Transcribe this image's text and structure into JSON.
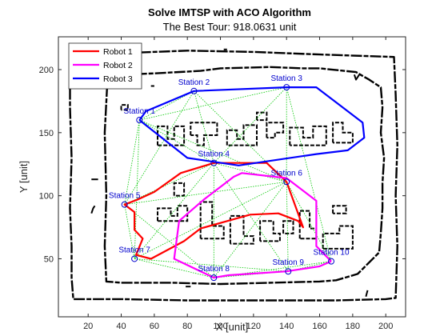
{
  "chart_data": {
    "type": "line",
    "title": "Solve IMTSP with ACO Algorithm",
    "subtitle": "The Best Tour: 918.0631 unit",
    "xlabel": "X [unit]",
    "ylabel": "Y [unit]",
    "xlim": [
      2,
      212
    ],
    "ylim": [
      4,
      226
    ],
    "xticks": [
      20,
      40,
      60,
      80,
      100,
      120,
      140,
      160,
      180,
      200
    ],
    "yticks": [
      50,
      100,
      150,
      200
    ],
    "grid": false,
    "legend_position": "top-left",
    "colors": {
      "map_walls": "#000000",
      "candidate_paths": "#00c800",
      "stations": "#0000cd",
      "axes": "#262626"
    },
    "stations": [
      {
        "label": "Station 1",
        "x": 51,
        "y": 160
      },
      {
        "label": "Station 2",
        "x": 84,
        "y": 183
      },
      {
        "label": "Station 3",
        "x": 140,
        "y": 186
      },
      {
        "label": "Station 4",
        "x": 96,
        "y": 126
      },
      {
        "label": "Station 5",
        "x": 42,
        "y": 93
      },
      {
        "label": "Station 6",
        "x": 140,
        "y": 111
      },
      {
        "label": "Station 7",
        "x": 48,
        "y": 50
      },
      {
        "label": "Station 8",
        "x": 96,
        "y": 35
      },
      {
        "label": "Station 9",
        "x": 141,
        "y": 40
      },
      {
        "label": "Station 10",
        "x": 167,
        "y": 48
      }
    ],
    "series": [
      {
        "name": "Robot 1",
        "color": "#ff0000",
        "x": [
          140,
          128,
          96,
          76,
          60,
          50,
          42,
          48,
          48,
          53,
          49,
          58,
          78,
          88,
          118,
          135,
          147,
          150,
          140
        ],
        "y": [
          111,
          126,
          126,
          118,
          103,
          97,
          93,
          87,
          73,
          66,
          53,
          50,
          64,
          74,
          85,
          86,
          80,
          75,
          111
        ]
      },
      {
        "name": "Robot 2",
        "color": "#ff00ff",
        "x": [
          167,
          160,
          140,
          105,
          96,
          72,
          75,
          90,
          108,
          113,
          140,
          158,
          158,
          167
        ],
        "y": [
          48,
          44,
          40,
          37,
          35,
          50,
          80,
          97,
          115,
          118,
          114,
          96,
          60,
          48
        ]
      },
      {
        "name": "Robot 3",
        "color": "#0000ff",
        "x": [
          51,
          55,
          84,
          140,
          158,
          186,
          187,
          177,
          158,
          111,
          80,
          51
        ],
        "y": [
          160,
          167,
          183,
          186,
          186,
          158,
          146,
          136,
          133,
          124,
          130,
          160
        ]
      }
    ],
    "candidate_paths": [
      [
        [
          51,
          160
        ],
        [
          84,
          183
        ]
      ],
      [
        [
          51,
          160
        ],
        [
          140,
          186
        ]
      ],
      [
        [
          51,
          160
        ],
        [
          96,
          126
        ]
      ],
      [
        [
          51,
          160
        ],
        [
          42,
          93
        ]
      ],
      [
        [
          51,
          160
        ],
        [
          140,
          111
        ]
      ],
      [
        [
          51,
          160
        ],
        [
          48,
          50
        ]
      ],
      [
        [
          84,
          183
        ],
        [
          140,
          186
        ]
      ],
      [
        [
          84,
          183
        ],
        [
          96,
          126
        ]
      ],
      [
        [
          84,
          183
        ],
        [
          140,
          111
        ]
      ],
      [
        [
          84,
          183
        ],
        [
          42,
          93
        ]
      ],
      [
        [
          140,
          186
        ],
        [
          96,
          126
        ]
      ],
      [
        [
          140,
          186
        ],
        [
          140,
          111
        ]
      ],
      [
        [
          140,
          186
        ],
        [
          167,
          48
        ]
      ],
      [
        [
          96,
          126
        ],
        [
          42,
          93
        ]
      ],
      [
        [
          96,
          126
        ],
        [
          140,
          111
        ]
      ],
      [
        [
          96,
          126
        ],
        [
          48,
          50
        ]
      ],
      [
        [
          96,
          126
        ],
        [
          96,
          35
        ]
      ],
      [
        [
          96,
          126
        ],
        [
          141,
          40
        ]
      ],
      [
        [
          42,
          93
        ],
        [
          48,
          50
        ]
      ],
      [
        [
          42,
          93
        ],
        [
          96,
          35
        ]
      ],
      [
        [
          42,
          93
        ],
        [
          140,
          111
        ]
      ],
      [
        [
          140,
          111
        ],
        [
          141,
          40
        ]
      ],
      [
        [
          140,
          111
        ],
        [
          167,
          48
        ]
      ],
      [
        [
          140,
          111
        ],
        [
          96,
          35
        ]
      ],
      [
        [
          48,
          50
        ],
        [
          96,
          35
        ]
      ],
      [
        [
          48,
          50
        ],
        [
          141,
          40
        ]
      ],
      [
        [
          96,
          35
        ],
        [
          141,
          40
        ]
      ],
      [
        [
          141,
          40
        ],
        [
          167,
          48
        ]
      ],
      [
        [
          96,
          35
        ],
        [
          167,
          48
        ]
      ],
      [
        [
          48,
          50
        ],
        [
          140,
          111
        ]
      ]
    ],
    "walls": [
      [
        [
          9,
          185
        ],
        [
          9,
          170
        ],
        [
          10,
          130
        ],
        [
          9,
          90
        ],
        [
          10,
          60
        ],
        [
          10,
          35
        ],
        [
          11,
          18
        ],
        [
          40,
          18
        ],
        [
          80,
          17
        ],
        [
          120,
          17
        ],
        [
          150,
          17
        ],
        [
          170,
          17
        ],
        [
          200,
          18
        ],
        [
          206,
          19
        ],
        [
          207,
          60
        ],
        [
          206,
          100
        ],
        [
          207,
          140
        ],
        [
          206,
          180
        ],
        [
          205,
          210
        ],
        [
          160,
          212
        ],
        [
          120,
          214
        ],
        [
          80,
          215
        ],
        [
          40,
          213
        ],
        [
          30,
          210
        ],
        [
          20,
          205
        ],
        [
          9,
          200
        ],
        [
          9,
          185
        ]
      ],
      [
        [
          33,
          209
        ],
        [
          33,
          200
        ],
        [
          41,
          196
        ],
        [
          60,
          197
        ],
        [
          88,
          199
        ],
        [
          100,
          201
        ],
        [
          130,
          202
        ],
        [
          150,
          201
        ],
        [
          160,
          201
        ],
        [
          182,
          198
        ],
        [
          190,
          192
        ],
        [
          197,
          186
        ],
        [
          198,
          170
        ],
        [
          197,
          150
        ],
        [
          199,
          130
        ],
        [
          198,
          110
        ],
        [
          198,
          90
        ],
        [
          197,
          70
        ],
        [
          196,
          55
        ],
        [
          183,
          38
        ],
        [
          170,
          33
        ],
        [
          160,
          32
        ],
        [
          100,
          30
        ],
        [
          70,
          31
        ],
        [
          40,
          31
        ],
        [
          31,
          32
        ],
        [
          30,
          60
        ],
        [
          31,
          100
        ],
        [
          30,
          150
        ],
        [
          32,
          200
        ],
        [
          33,
          209
        ]
      ],
      [
        [
          22,
          113
        ],
        [
          26,
          113
        ]
      ],
      [
        [
          22,
          86
        ],
        [
          23,
          90
        ],
        [
          24,
          92
        ]
      ],
      [
        [
          79,
          28
        ],
        [
          82,
          28
        ]
      ],
      [
        [
          102,
          216
        ],
        [
          104,
          216
        ]
      ],
      [
        [
          58,
          187
        ],
        [
          60,
          187
        ]
      ],
      [
        [
          47,
          188
        ],
        [
          48,
          188
        ]
      ],
      [
        [
          181,
          196
        ],
        [
          182,
          192
        ],
        [
          184,
          196
        ]
      ],
      [
        [
          188,
          20
        ],
        [
          189,
          25
        ]
      ]
    ],
    "glyph_blocks": [
      [
        [
          62,
          140
        ],
        [
          62,
          155
        ],
        [
          68,
          155
        ],
        [
          68,
          145
        ],
        [
          72,
          145
        ],
        [
          72,
          155
        ],
        [
          78,
          155
        ],
        [
          78,
          140
        ],
        [
          62,
          140
        ]
      ],
      [
        [
          82,
          148
        ],
        [
          82,
          158
        ],
        [
          98,
          158
        ],
        [
          98,
          148
        ],
        [
          90,
          148
        ],
        [
          90,
          140
        ],
        [
          86,
          140
        ],
        [
          86,
          148
        ],
        [
          82,
          148
        ]
      ],
      [
        [
          104,
          140
        ],
        [
          104,
          152
        ],
        [
          110,
          152
        ],
        [
          110,
          145
        ],
        [
          114,
          145
        ],
        [
          114,
          156
        ],
        [
          122,
          156
        ],
        [
          122,
          140
        ],
        [
          104,
          140
        ]
      ],
      [
        [
          128,
          146
        ],
        [
          128,
          158
        ],
        [
          138,
          158
        ],
        [
          138,
          150
        ],
        [
          133,
          150
        ],
        [
          133,
          146
        ],
        [
          128,
          146
        ]
      ],
      [
        [
          142,
          140
        ],
        [
          142,
          154
        ],
        [
          150,
          154
        ],
        [
          150,
          146
        ],
        [
          156,
          146
        ],
        [
          156,
          155
        ],
        [
          164,
          155
        ],
        [
          164,
          140
        ],
        [
          142,
          140
        ]
      ],
      [
        [
          168,
          142
        ],
        [
          168,
          158
        ],
        [
          174,
          158
        ],
        [
          174,
          150
        ],
        [
          180,
          150
        ],
        [
          180,
          142
        ],
        [
          168,
          142
        ]
      ],
      [
        [
          62,
          80
        ],
        [
          62,
          90
        ],
        [
          70,
          90
        ],
        [
          70,
          84
        ],
        [
          74,
          84
        ],
        [
          74,
          92
        ],
        [
          80,
          92
        ],
        [
          80,
          80
        ],
        [
          62,
          80
        ]
      ],
      [
        [
          72,
          100
        ],
        [
          72,
          110
        ],
        [
          78,
          110
        ],
        [
          78,
          100
        ],
        [
          72,
          100
        ]
      ],
      [
        [
          88,
          66
        ],
        [
          88,
          95
        ],
        [
          95,
          95
        ],
        [
          95,
          76
        ],
        [
          102,
          76
        ],
        [
          102,
          66
        ],
        [
          88,
          66
        ]
      ],
      [
        [
          106,
          62
        ],
        [
          106,
          84
        ],
        [
          114,
          84
        ],
        [
          114,
          68
        ],
        [
          120,
          68
        ],
        [
          120,
          62
        ],
        [
          106,
          62
        ]
      ],
      [
        [
          124,
          64
        ],
        [
          124,
          80
        ],
        [
          132,
          80
        ],
        [
          132,
          70
        ],
        [
          136,
          70
        ],
        [
          136,
          64
        ],
        [
          124,
          64
        ]
      ],
      [
        [
          138,
          70
        ],
        [
          138,
          80
        ],
        [
          144,
          80
        ],
        [
          144,
          70
        ],
        [
          138,
          70
        ]
      ],
      [
        [
          148,
          66
        ],
        [
          148,
          88
        ],
        [
          154,
          88
        ],
        [
          154,
          74
        ],
        [
          158,
          74
        ],
        [
          158,
          66
        ],
        [
          148,
          66
        ]
      ],
      [
        [
          162,
          58
        ],
        [
          162,
          70
        ],
        [
          172,
          70
        ],
        [
          172,
          76
        ],
        [
          180,
          76
        ],
        [
          180,
          58
        ],
        [
          162,
          58
        ]
      ],
      [
        [
          168,
          86
        ],
        [
          168,
          92
        ],
        [
          176,
          92
        ],
        [
          176,
          86
        ],
        [
          168,
          86
        ]
      ],
      [
        [
          122,
          160
        ],
        [
          122,
          166
        ],
        [
          128,
          166
        ],
        [
          128,
          160
        ],
        [
          122,
          160
        ]
      ],
      [
        [
          40,
          168
        ],
        [
          40,
          172
        ],
        [
          44,
          172
        ],
        [
          44,
          168
        ],
        [
          40,
          168
        ]
      ]
    ]
  }
}
